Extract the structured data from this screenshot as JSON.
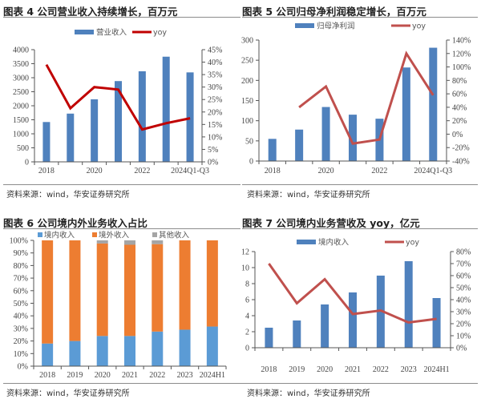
{
  "source_text": "资料来源：wind，华安证券研究所",
  "chart_data": [
    {
      "id": "fig4",
      "type": "bar+line",
      "title": "图表 4  公司营业收入持续增长，百万元",
      "categories": [
        "2018",
        "2019",
        "2020",
        "2021",
        "2022",
        "2023",
        "2024Q1-Q3"
      ],
      "x_tick_labels": [
        "2018",
        "",
        "2020",
        "",
        "2022",
        "",
        "2024Q1-Q3"
      ],
      "series": [
        {
          "name": "营业收入",
          "type": "bar",
          "axis": "left",
          "color": "#4f81bd",
          "values": [
            1420,
            1720,
            2230,
            2880,
            3230,
            3750,
            3190
          ]
        },
        {
          "name": "yoy",
          "type": "line",
          "axis": "right",
          "color": "#c00000",
          "values": [
            0.39,
            0.215,
            0.3,
            0.29,
            0.13,
            0.155,
            0.175
          ]
        }
      ],
      "left_axis": {
        "min": 0,
        "max": 4000,
        "step": 500,
        "labels": [
          "0",
          "500",
          "1000",
          "1500",
          "2000",
          "2500",
          "3000",
          "3500",
          "4000"
        ]
      },
      "right_axis": {
        "min": 0,
        "max": 0.45,
        "step": 0.05,
        "labels": [
          "0%",
          "5%",
          "10%",
          "15%",
          "20%",
          "25%",
          "30%",
          "35%",
          "40%",
          "45%"
        ]
      },
      "legend": {
        "placement": "top",
        "items": [
          "营业收入",
          "yoy"
        ]
      },
      "grid": false
    },
    {
      "id": "fig5",
      "type": "bar+line",
      "title": "图表 5  公司归母净利润稳定增长，百万元",
      "categories": [
        "2018",
        "2019",
        "2020",
        "2021",
        "2022",
        "2023",
        "2024Q1-Q3"
      ],
      "x_tick_labels": [
        "2018",
        "",
        "2020",
        "",
        "2022",
        "",
        "2024Q1-Q3"
      ],
      "series": [
        {
          "name": "归母净利润",
          "type": "bar",
          "axis": "left",
          "color": "#4f81bd",
          "values": [
            55,
            78,
            134,
            115,
            105,
            232,
            281
          ]
        },
        {
          "name": "yoy",
          "type": "line",
          "axis": "right",
          "color": "#c0504d",
          "values": [
            null,
            0.4,
            0.71,
            -0.14,
            -0.08,
            1.2,
            0.58
          ]
        }
      ],
      "left_axis": {
        "min": 0,
        "max": 300,
        "step": 50,
        "labels": [
          "0",
          "50",
          "100",
          "150",
          "200",
          "250",
          "300"
        ]
      },
      "right_axis": {
        "min": -0.4,
        "max": 1.4,
        "step": 0.2,
        "labels": [
          "-40%",
          "-20%",
          "0%",
          "20%",
          "40%",
          "60%",
          "80%",
          "100%",
          "120%",
          "140%"
        ]
      },
      "legend": {
        "placement": "top",
        "items": [
          "归母净利润",
          "yoy"
        ]
      },
      "grid": false
    },
    {
      "id": "fig6",
      "type": "stacked-bar",
      "title": "图表 6  公司境内外业务收入占比",
      "categories": [
        "2018",
        "2019",
        "2020",
        "2021",
        "2022",
        "2023",
        "2024H1"
      ],
      "x_tick_labels": [
        "2018",
        "2019",
        "2020",
        "2021",
        "2022",
        "2023",
        "2024H1"
      ],
      "series": [
        {
          "name": "境内收入",
          "color": "#5b9bd5",
          "values": [
            0.18,
            0.2,
            0.24,
            0.24,
            0.275,
            0.29,
            0.315
          ]
        },
        {
          "name": "境外收入",
          "color": "#ed7d31",
          "values": [
            0.82,
            0.8,
            0.735,
            0.725,
            0.695,
            0.71,
            0.685
          ]
        },
        {
          "name": "其他收入",
          "color": "#a5a5a5",
          "values": [
            0.0,
            0.0,
            0.025,
            0.035,
            0.03,
            0.0,
            0.0
          ]
        }
      ],
      "left_axis": {
        "min": 0,
        "max": 1,
        "step": 0.1,
        "labels": [
          "0%",
          "10%",
          "20%",
          "30%",
          "40%",
          "50%",
          "60%",
          "70%",
          "80%",
          "90%",
          "100%"
        ]
      },
      "legend": {
        "placement": "top",
        "items": [
          "境内收入",
          "境外收入",
          "其他收入"
        ]
      },
      "grid": false
    },
    {
      "id": "fig7",
      "type": "bar+line",
      "title": "图表 7  公司境内业务营收及 yoy，亿元",
      "categories": [
        "2018",
        "2019",
        "2020",
        "2021",
        "2022",
        "2023",
        "2024H1"
      ],
      "x_tick_labels": [
        "2018",
        "2019",
        "2020",
        "2021",
        "2022",
        "2023",
        "2024H1"
      ],
      "series": [
        {
          "name": "境内收入",
          "type": "bar",
          "axis": "left",
          "color": "#4f81bd",
          "values": [
            2.5,
            3.4,
            5.4,
            6.9,
            9.0,
            10.8,
            6.2
          ]
        },
        {
          "name": "yoy",
          "type": "line",
          "axis": "right",
          "color": "#c0504d",
          "values": [
            0.7,
            0.37,
            0.57,
            0.28,
            0.31,
            0.21,
            0.24
          ]
        }
      ],
      "left_axis": {
        "min": 0,
        "max": 12,
        "step": 2,
        "labels": [
          "0",
          "2",
          "4",
          "6",
          "8",
          "10",
          "12"
        ]
      },
      "right_axis": {
        "min": 0,
        "max": 0.8,
        "step": 0.1,
        "labels": [
          "0%",
          "10%",
          "20%",
          "30%",
          "40%",
          "50%",
          "60%",
          "70%",
          "80%"
        ]
      },
      "legend": {
        "placement": "top",
        "items": [
          "境内收入",
          "yoy"
        ]
      },
      "grid": false
    }
  ]
}
